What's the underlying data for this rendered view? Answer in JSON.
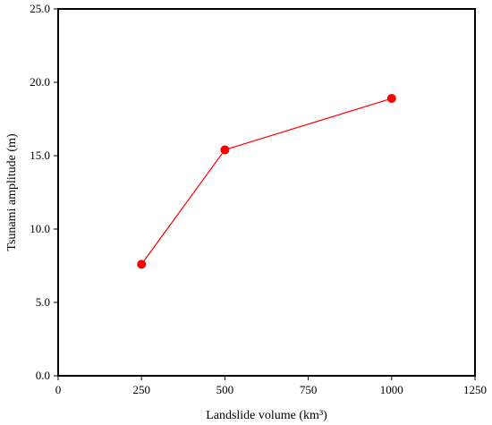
{
  "chart_data": {
    "type": "line",
    "xlabel": "Landslide volume (km³)",
    "ylabel": "Tsunami amplitude (m)",
    "xlim": [
      0,
      1250
    ],
    "ylim": [
      0,
      25
    ],
    "x_ticks": [
      "0",
      "250",
      "500",
      "750",
      "1000",
      "1250"
    ],
    "y_ticks": [
      "0.0",
      "5.0",
      "10.0",
      "15.0",
      "20.0",
      "25.0"
    ],
    "grid": false,
    "series": [
      {
        "x": [
          250,
          500,
          1000
        ],
        "y": [
          7.6,
          15.4,
          18.9
        ],
        "color": "#ff0000",
        "marker": "circle"
      }
    ]
  }
}
